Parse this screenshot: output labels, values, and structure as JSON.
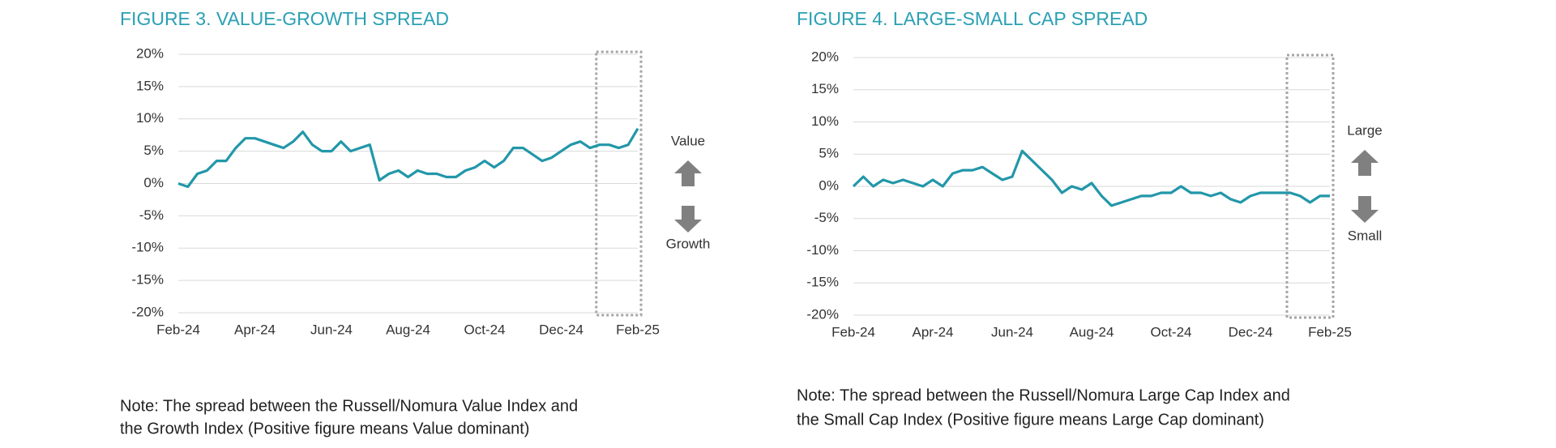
{
  "chart_data": [
    {
      "type": "line",
      "title": "FIGURE 3. VALUE-GROWTH SPREAD",
      "categories": [
        "Feb-24",
        null,
        null,
        null,
        null,
        null,
        null,
        null,
        "Apr-24",
        null,
        null,
        null,
        null,
        null,
        null,
        null,
        "Jun-24",
        null,
        null,
        null,
        null,
        null,
        null,
        null,
        "Aug-24",
        null,
        null,
        null,
        null,
        null,
        null,
        null,
        "Oct-24",
        null,
        null,
        null,
        null,
        null,
        null,
        null,
        "Dec-24",
        null,
        null,
        null,
        null,
        null,
        null,
        null,
        "Feb-25"
      ],
      "values": [
        0,
        -0.5,
        1.5,
        2,
        3.5,
        3.5,
        5.5,
        7,
        7,
        6.5,
        6,
        5.5,
        6.5,
        8,
        6,
        5,
        5,
        6.5,
        5,
        5.5,
        6,
        0.5,
        1.5,
        2,
        1,
        2,
        1.5,
        1.5,
        1,
        1,
        2,
        2.5,
        3.5,
        2.5,
        3.5,
        5.5,
        5.5,
        4.5,
        3.5,
        4,
        5,
        6,
        6.5,
        5.5,
        6,
        6,
        5.5,
        6,
        8.5
      ],
      "color": "#2297a9",
      "ylim": [
        -20,
        20
      ],
      "yticks": [
        {
          "value": -20,
          "label": "-20%"
        },
        {
          "value": -15,
          "label": "-15%"
        },
        {
          "value": -10,
          "label": "-10%"
        },
        {
          "value": -5,
          "label": "-5%"
        },
        {
          "value": 0,
          "label": "0%"
        },
        {
          "value": 5,
          "label": "5%"
        },
        {
          "value": 10,
          "label": "10%"
        },
        {
          "value": 15,
          "label": "15%"
        },
        {
          "value": 20,
          "label": "20%"
        }
      ],
      "grid": true,
      "annotations": [
        "Value",
        "Growth"
      ],
      "note": [
        "Note: The spread between the Russell/Nomura Value Index and",
        "the Growth Index (Positive figure means Value dominant)"
      ]
    },
    {
      "type": "line",
      "title": "FIGURE 4. LARGE-SMALL CAP SPREAD",
      "categories": [
        "Feb-24",
        null,
        null,
        null,
        null,
        null,
        null,
        null,
        "Apr-24",
        null,
        null,
        null,
        null,
        null,
        null,
        null,
        "Jun-24",
        null,
        null,
        null,
        null,
        null,
        null,
        null,
        "Aug-24",
        null,
        null,
        null,
        null,
        null,
        null,
        null,
        "Oct-24",
        null,
        null,
        null,
        null,
        null,
        null,
        null,
        "Dec-24",
        null,
        null,
        null,
        null,
        null,
        null,
        null,
        "Feb-25"
      ],
      "values": [
        0,
        1.5,
        0,
        1,
        0.5,
        1,
        0.5,
        0,
        1,
        0,
        2,
        2.5,
        2.5,
        3,
        2,
        1,
        1.5,
        5.5,
        4,
        2.5,
        1,
        -1,
        0,
        -0.5,
        0.5,
        -1.5,
        -3,
        -2.5,
        -2,
        -1.5,
        -1.5,
        -1,
        -1,
        0,
        -1,
        -1,
        -1.5,
        -1,
        -2,
        -2.5,
        -1.5,
        -1,
        -1,
        -1,
        -1,
        -1.5,
        -2.5,
        -1.5,
        -1.5
      ],
      "color": "#2297a9",
      "ylim": [
        -20,
        20
      ],
      "yticks": [
        {
          "value": -20,
          "label": "-20%"
        },
        {
          "value": -15,
          "label": "-15%"
        },
        {
          "value": -10,
          "label": "-10%"
        },
        {
          "value": -5,
          "label": "-5%"
        },
        {
          "value": 0,
          "label": "0%"
        },
        {
          "value": 5,
          "label": "5%"
        },
        {
          "value": 10,
          "label": "10%"
        },
        {
          "value": 15,
          "label": "15%"
        },
        {
          "value": 20,
          "label": "20%"
        }
      ],
      "grid": true,
      "annotations": [
        "Large",
        "Small"
      ],
      "note": [
        "Note: The spread between the Russell/Nomura Large Cap Index and",
        "the Small Cap Index (Positive figure means Large Cap dominant)"
      ]
    }
  ]
}
